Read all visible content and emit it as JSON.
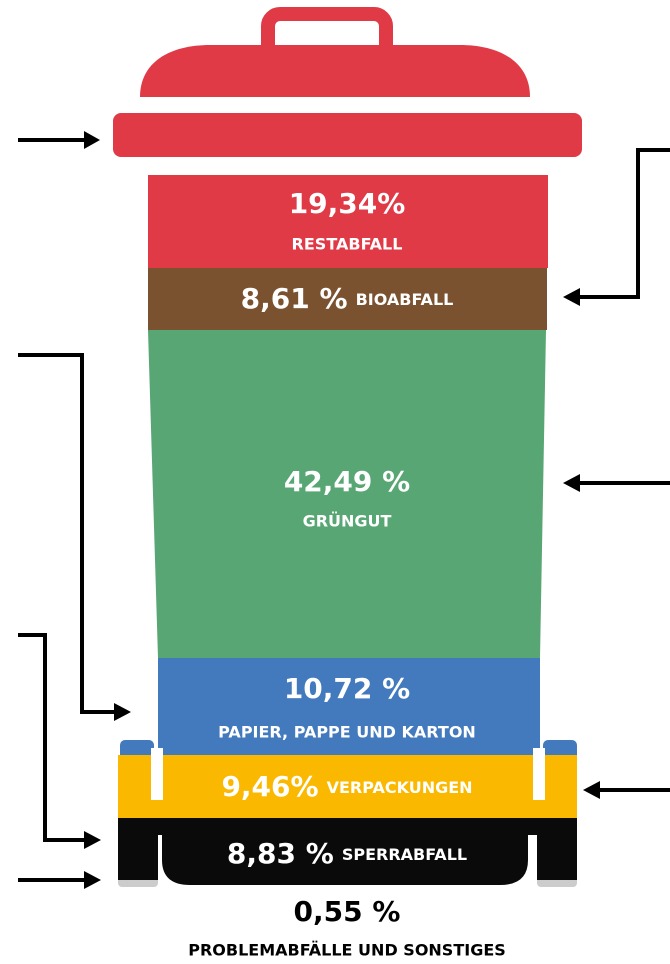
{
  "segments": [
    {
      "value": "19,34%",
      "label": "RESTABFALL"
    },
    {
      "value": "8,61 %",
      "label": "BIOABFALL"
    },
    {
      "value": "42,49 %",
      "label": "GRÜNGUT"
    },
    {
      "value": "10,72 %",
      "label": "PAPIER, PAPPE UND KARTON"
    },
    {
      "value": "9,46%",
      "label": "VERPACKUNGEN"
    },
    {
      "value": "8,83 %",
      "label": "SPERRABFALL"
    },
    {
      "value": "0,55 %",
      "label": "PROBLEMABFÄLLE UND SONSTIGES"
    }
  ]
}
